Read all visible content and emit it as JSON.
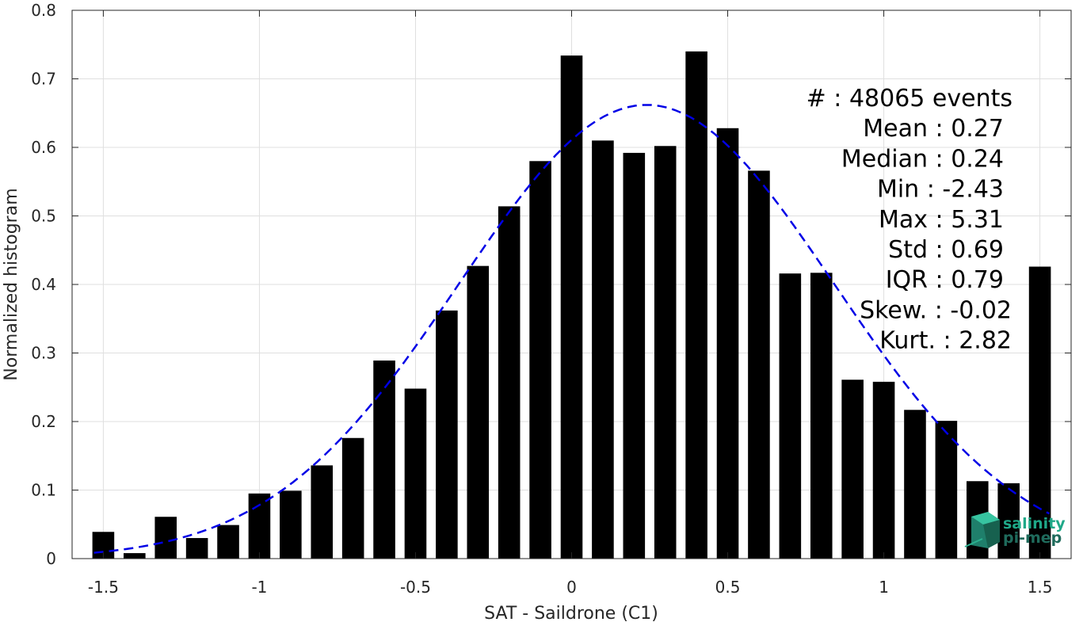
{
  "chart_data": {
    "type": "bar",
    "xlabel": "SAT - Saildrone (C1)",
    "ylabel": "Normalized histogram",
    "xlim": [
      -1.6,
      1.6
    ],
    "ylim": [
      0,
      0.8
    ],
    "grid": true,
    "xticks": [
      -1.5,
      -1,
      -0.5,
      0,
      0.5,
      1,
      1.5
    ],
    "xtick_labels": [
      "-1.5",
      "-1",
      "-0.5",
      "0",
      "0.5",
      "1",
      "1.5"
    ],
    "yticks": [
      0,
      0.1,
      0.2,
      0.3,
      0.4,
      0.5,
      0.6,
      0.7,
      0.8
    ],
    "ytick_labels": [
      "0",
      "0.1",
      "0.2",
      "0.3",
      "0.4",
      "0.5",
      "0.6",
      "0.7",
      "0.8"
    ],
    "bar_color": "#000000",
    "bar_width": 0.07,
    "x": [
      -1.5,
      -1.4,
      -1.3,
      -1.2,
      -1.1,
      -1.0,
      -0.9,
      -0.8,
      -0.7,
      -0.6,
      -0.5,
      -0.4,
      -0.3,
      -0.2,
      -0.1,
      0.0,
      0.1,
      0.2,
      0.3,
      0.4,
      0.5,
      0.6,
      0.7,
      0.8,
      0.9,
      1.0,
      1.1,
      1.2,
      1.3,
      1.4,
      1.5
    ],
    "values": [
      0.039,
      0.008,
      0.061,
      0.03,
      0.049,
      0.095,
      0.099,
      0.136,
      0.176,
      0.289,
      0.248,
      0.362,
      0.427,
      0.514,
      0.58,
      0.734,
      0.61,
      0.592,
      0.602,
      0.74,
      0.628,
      0.566,
      0.416,
      0.417,
      0.261,
      0.258,
      0.217,
      0.201,
      0.113,
      0.11,
      0.426
    ],
    "fit_curve": {
      "style": "dashed",
      "color": "#0000e6",
      "mean": 0.24,
      "std": 0.6,
      "peak": 0.662,
      "x_range": [
        -1.53,
        1.53
      ]
    },
    "stats_lines": [
      "#  : 48065 events",
      "Mean : 0.27",
      "Median : 0.24",
      "Min : -2.43",
      "Max : 5.31",
      "Std : 0.69",
      "IQR : 0.79",
      "Skew. : -0.02",
      "Kurt. : 2.82"
    ],
    "logo": {
      "line1": "salinity",
      "line2": "pi-mep",
      "color1": "#1fa888",
      "color2": "#1f6b5c"
    }
  }
}
